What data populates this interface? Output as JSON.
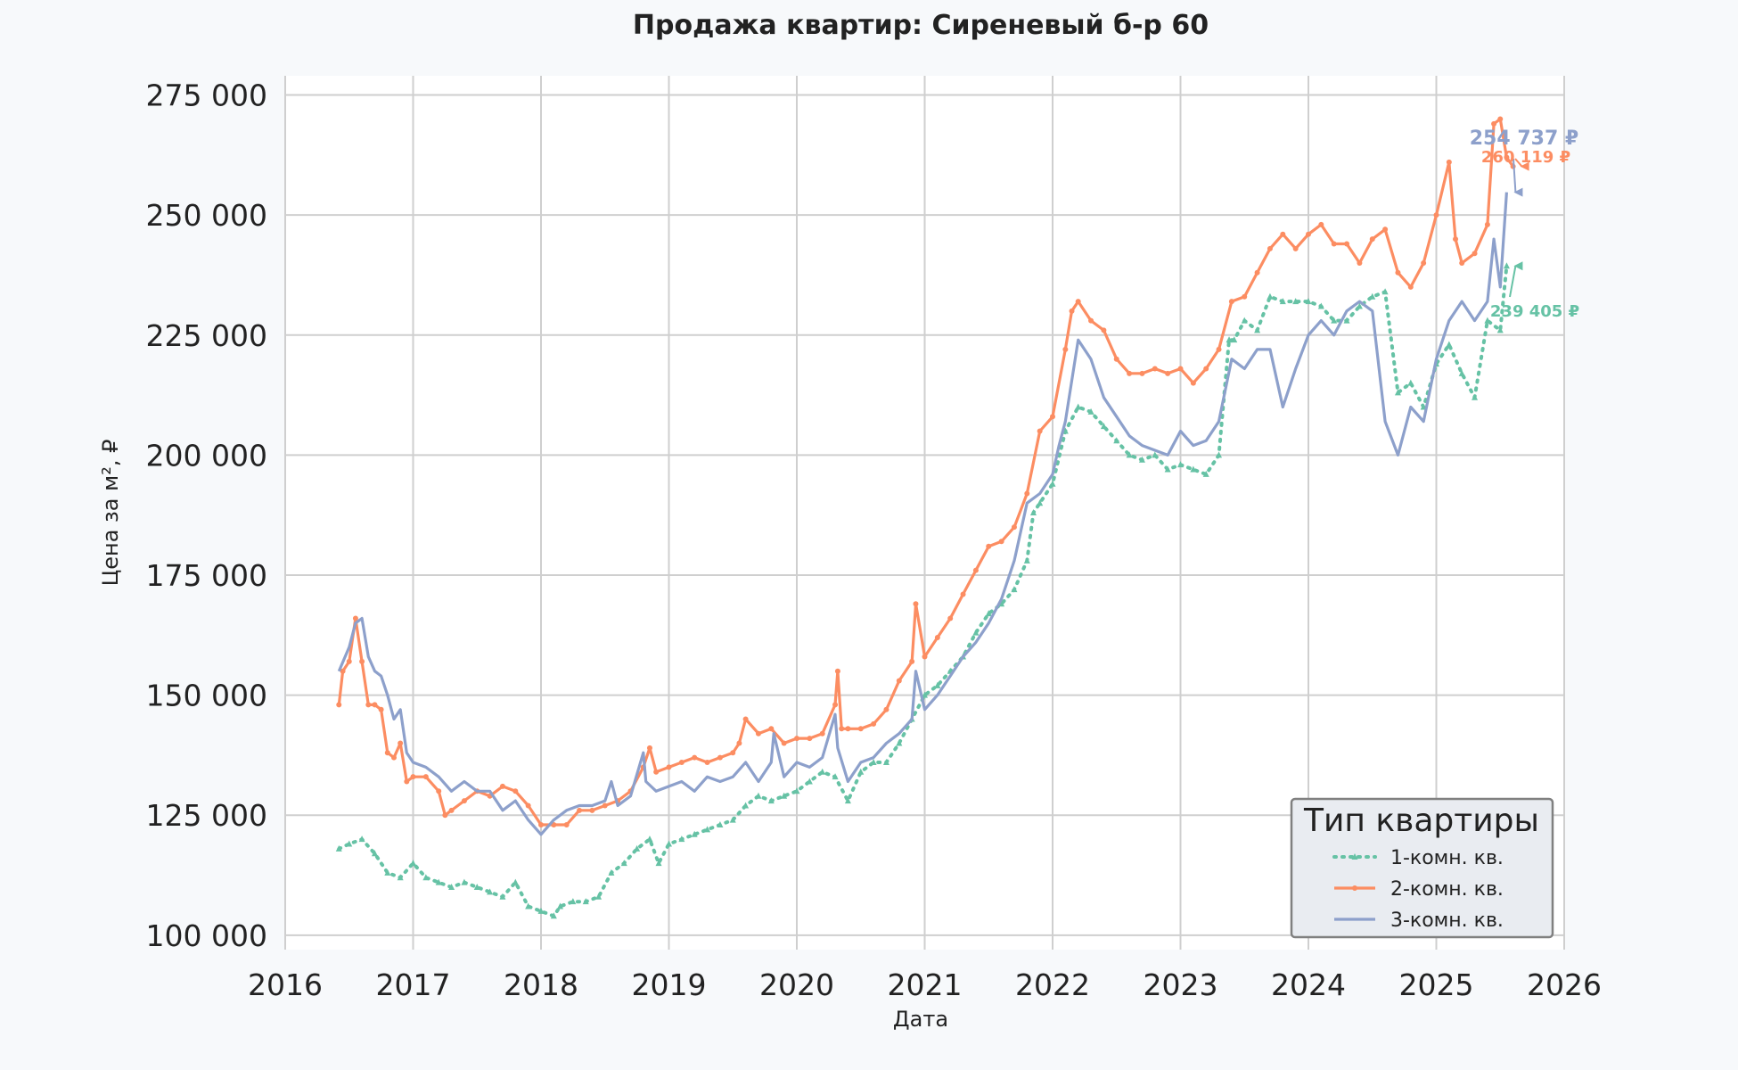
{
  "chart_data": {
    "type": "line",
    "title": "Продажа квартир: Сиреневый б-р 60",
    "xlabel": "Дата",
    "ylabel": "Цена за м², ₽",
    "xlim": [
      2016,
      2026
    ],
    "ylim": [
      97000,
      279000
    ],
    "x_ticks": [
      "2016",
      "2017",
      "2018",
      "2019",
      "2020",
      "2021",
      "2022",
      "2023",
      "2024",
      "2025",
      "2026"
    ],
    "y_ticks": [
      {
        "value": 100000,
        "label": "100 000"
      },
      {
        "value": 125000,
        "label": "125 000"
      },
      {
        "value": 150000,
        "label": "150 000"
      },
      {
        "value": 175000,
        "label": "175 000"
      },
      {
        "value": 200000,
        "label": "200 000"
      },
      {
        "value": 225000,
        "label": "225 000"
      },
      {
        "value": 250000,
        "label": "250 000"
      },
      {
        "value": 275000,
        "label": "275 000"
      }
    ],
    "grid": true,
    "legend": {
      "title": "Тип квартиры",
      "position": "bottom-right"
    },
    "series": [
      {
        "name": "1-комн. кв.",
        "color": "#66c2a5",
        "style": "dotted",
        "marker": "triangle",
        "x": [
          2016.42,
          2016.5,
          2016.6,
          2016.7,
          2016.8,
          2016.9,
          2017.0,
          2017.1,
          2017.2,
          2017.3,
          2017.4,
          2017.5,
          2017.6,
          2017.7,
          2017.8,
          2017.9,
          2018.0,
          2018.1,
          2018.15,
          2018.25,
          2018.35,
          2018.45,
          2018.55,
          2018.65,
          2018.75,
          2018.85,
          2018.92,
          2019.0,
          2019.1,
          2019.2,
          2019.3,
          2019.4,
          2019.5,
          2019.6,
          2019.7,
          2019.8,
          2019.9,
          2020.0,
          2020.1,
          2020.2,
          2020.3,
          2020.4,
          2020.5,
          2020.6,
          2020.7,
          2020.8,
          2020.9,
          2021.0,
          2021.1,
          2021.2,
          2021.3,
          2021.4,
          2021.5,
          2021.6,
          2021.7,
          2021.8,
          2021.85,
          2021.9,
          2022.0,
          2022.1,
          2022.2,
          2022.3,
          2022.4,
          2022.5,
          2022.6,
          2022.7,
          2022.8,
          2022.9,
          2023.0,
          2023.1,
          2023.2,
          2023.3,
          2023.38,
          2023.42,
          2023.5,
          2023.6,
          2023.7,
          2023.8,
          2023.9,
          2024.0,
          2024.1,
          2024.2,
          2024.3,
          2024.4,
          2024.5,
          2024.6,
          2024.7,
          2024.8,
          2024.9,
          2025.0,
          2025.1,
          2025.2,
          2025.3,
          2025.4,
          2025.5,
          2025.55
        ],
        "y": [
          118000,
          119000,
          120000,
          117000,
          113000,
          112000,
          115000,
          112000,
          111000,
          110000,
          111000,
          110000,
          109000,
          108000,
          111000,
          106000,
          105000,
          104000,
          106000,
          107000,
          107000,
          108000,
          113000,
          115000,
          118000,
          120000,
          115000,
          119000,
          120000,
          121000,
          122000,
          123000,
          124000,
          127000,
          129000,
          128000,
          129000,
          130000,
          132000,
          134000,
          133000,
          128000,
          134000,
          136000,
          136000,
          140000,
          145000,
          150000,
          152000,
          155000,
          158000,
          163000,
          167000,
          169000,
          172000,
          178000,
          188000,
          190000,
          194000,
          205000,
          210000,
          209000,
          206000,
          203000,
          200000,
          199000,
          200000,
          197000,
          198000,
          197000,
          196000,
          200000,
          224000,
          224000,
          228000,
          226000,
          233000,
          232000,
          232000,
          232000,
          231000,
          228000,
          228000,
          231000,
          233000,
          234000,
          213000,
          215000,
          210000,
          219000,
          223000,
          217000,
          212000,
          228000,
          226000,
          239405
        ]
      },
      {
        "name": "2-комн. кв.",
        "color": "#fc8d62",
        "style": "solid",
        "marker": "dot",
        "x": [
          2016.42,
          2016.45,
          2016.5,
          2016.55,
          2016.6,
          2016.65,
          2016.7,
          2016.75,
          2016.8,
          2016.85,
          2016.9,
          2016.95,
          2017.0,
          2017.1,
          2017.2,
          2017.25,
          2017.3,
          2017.4,
          2017.5,
          2017.6,
          2017.7,
          2017.8,
          2017.9,
          2018.0,
          2018.1,
          2018.2,
          2018.3,
          2018.4,
          2018.5,
          2018.6,
          2018.7,
          2018.8,
          2018.85,
          2018.9,
          2019.0,
          2019.1,
          2019.2,
          2019.3,
          2019.4,
          2019.5,
          2019.55,
          2019.6,
          2019.7,
          2019.8,
          2019.9,
          2020.0,
          2020.1,
          2020.2,
          2020.3,
          2020.32,
          2020.35,
          2020.4,
          2020.5,
          2020.6,
          2020.7,
          2020.8,
          2020.9,
          2020.93,
          2021.0,
          2021.1,
          2021.2,
          2021.3,
          2021.4,
          2021.5,
          2021.6,
          2021.7,
          2021.8,
          2021.9,
          2022.0,
          2022.1,
          2022.15,
          2022.2,
          2022.3,
          2022.4,
          2022.5,
          2022.6,
          2022.7,
          2022.8,
          2022.9,
          2023.0,
          2023.1,
          2023.2,
          2023.3,
          2023.4,
          2023.5,
          2023.6,
          2023.7,
          2023.8,
          2023.9,
          2024.0,
          2024.1,
          2024.2,
          2024.3,
          2024.4,
          2024.5,
          2024.6,
          2024.7,
          2024.8,
          2024.9,
          2025.0,
          2025.1,
          2025.15,
          2025.2,
          2025.3,
          2025.4,
          2025.45,
          2025.5,
          2025.55,
          2025.6
        ],
        "y": [
          148000,
          155000,
          157000,
          166000,
          157000,
          148000,
          148000,
          147000,
          138000,
          137000,
          140000,
          132000,
          133000,
          133000,
          130000,
          125000,
          126000,
          128000,
          130000,
          129000,
          131000,
          130000,
          127000,
          123000,
          123000,
          123000,
          126000,
          126000,
          127000,
          128000,
          130000,
          135000,
          139000,
          134000,
          135000,
          136000,
          137000,
          136000,
          137000,
          138000,
          140000,
          145000,
          142000,
          143000,
          140000,
          141000,
          141000,
          142000,
          148000,
          155000,
          143000,
          143000,
          143000,
          144000,
          147000,
          153000,
          157000,
          169000,
          158000,
          162000,
          166000,
          171000,
          176000,
          181000,
          182000,
          185000,
          192000,
          205000,
          208000,
          222000,
          230000,
          232000,
          228000,
          226000,
          220000,
          217000,
          217000,
          218000,
          217000,
          218000,
          215000,
          218000,
          222000,
          232000,
          233000,
          238000,
          243000,
          246000,
          243000,
          246000,
          248000,
          244000,
          244000,
          240000,
          245000,
          247000,
          238000,
          235000,
          240000,
          250000,
          261000,
          245000,
          240000,
          242000,
          248000,
          269000,
          270000,
          262000,
          260119
        ]
      },
      {
        "name": "3-комн. кв.",
        "color": "#8da0cb",
        "style": "solid",
        "marker": "none",
        "x": [
          2016.42,
          2016.5,
          2016.55,
          2016.6,
          2016.65,
          2016.7,
          2016.75,
          2016.8,
          2016.85,
          2016.9,
          2016.95,
          2017.0,
          2017.1,
          2017.2,
          2017.3,
          2017.4,
          2017.5,
          2017.6,
          2017.7,
          2017.8,
          2017.9,
          2018.0,
          2018.1,
          2018.2,
          2018.3,
          2018.4,
          2018.5,
          2018.55,
          2018.6,
          2018.7,
          2018.8,
          2018.82,
          2018.9,
          2019.0,
          2019.1,
          2019.2,
          2019.3,
          2019.4,
          2019.5,
          2019.6,
          2019.7,
          2019.8,
          2019.82,
          2019.9,
          2020.0,
          2020.1,
          2020.2,
          2020.3,
          2020.32,
          2020.4,
          2020.5,
          2020.6,
          2020.7,
          2020.8,
          2020.9,
          2020.93,
          2021.0,
          2021.1,
          2021.2,
          2021.3,
          2021.4,
          2021.5,
          2021.6,
          2021.7,
          2021.8,
          2021.9,
          2022.0,
          2022.05,
          2022.1,
          2022.2,
          2022.3,
          2022.4,
          2022.5,
          2022.6,
          2022.7,
          2022.8,
          2022.9,
          2023.0,
          2023.1,
          2023.2,
          2023.3,
          2023.4,
          2023.5,
          2023.6,
          2023.7,
          2023.8,
          2023.9,
          2024.0,
          2024.1,
          2024.2,
          2024.3,
          2024.4,
          2024.5,
          2024.6,
          2024.7,
          2024.8,
          2024.9,
          2025.0,
          2025.1,
          2025.2,
          2025.3,
          2025.4,
          2025.45,
          2025.5,
          2025.55
        ],
        "y": [
          155000,
          160000,
          165000,
          166000,
          158000,
          155000,
          154000,
          150000,
          145000,
          147000,
          138000,
          136000,
          135000,
          133000,
          130000,
          132000,
          130000,
          130000,
          126000,
          128000,
          124000,
          121000,
          124000,
          126000,
          127000,
          127000,
          128000,
          132000,
          127000,
          129000,
          138000,
          132000,
          130000,
          131000,
          132000,
          130000,
          133000,
          132000,
          133000,
          136000,
          132000,
          136000,
          142000,
          133000,
          136000,
          135000,
          137000,
          146000,
          139000,
          132000,
          136000,
          137000,
          140000,
          142000,
          145000,
          155000,
          147000,
          150000,
          154000,
          158000,
          161000,
          165000,
          170000,
          178000,
          190000,
          192000,
          196000,
          202000,
          207000,
          224000,
          220000,
          212000,
          208000,
          204000,
          202000,
          201000,
          200000,
          205000,
          202000,
          203000,
          207000,
          220000,
          218000,
          222000,
          222000,
          210000,
          218000,
          225000,
          228000,
          225000,
          230000,
          232000,
          230000,
          207000,
          200000,
          210000,
          207000,
          220000,
          228000,
          232000,
          228000,
          232000,
          245000,
          235000,
          254737
        ]
      }
    ],
    "annotations": [
      {
        "label": "254 737 ₽",
        "series": "3-комн. кв.",
        "x": 2025.55,
        "y": 254737
      },
      {
        "label": "260 119 ₽",
        "series": "2-комн. кв.",
        "x": 2025.6,
        "y": 260119
      },
      {
        "label": "239 405 ₽",
        "series": "1-комн. кв.",
        "x": 2025.55,
        "y": 239405
      }
    ]
  }
}
